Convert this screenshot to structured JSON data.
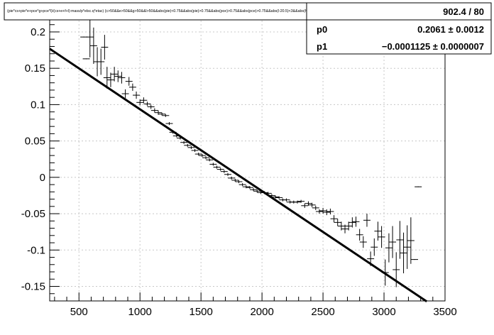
{
  "chart_data": {
    "type": "scatter",
    "title": "(pie*cs+pie*e+pce*g+pce*l)/(cs+e+f+l):mass/p*elsc.q*etac) {c>50&&e>50&&g>50&&l>50&&abs(pie)<0.75&&abs(pie)>0.75&&abs(pce)>0.75&&abs(pce)>0.75&&abs(l-20.5)<3&&abs(h-20.5)<3&&(etac)etac)}",
    "xlabel": "",
    "ylabel": "",
    "xlim": [
      260,
      3500
    ],
    "ylim": [
      -0.17,
      0.24
    ],
    "grid": true,
    "x_ticks": [
      "500",
      "1000",
      "1500",
      "2000",
      "2500",
      "3000",
      "3500"
    ],
    "y_ticks": [
      "0.2",
      "0.15",
      "0.1",
      "0.05",
      "0",
      "-0.05",
      "-0.1",
      "-0.15"
    ],
    "stats": {
      "chi2_ndf": "902.4 / 80",
      "params": [
        {
          "name": "p0",
          "value": "0.2061 ± 0.0012"
        },
        {
          "name": "p1",
          "value": "−0.0001125 ± 0.0000007"
        }
      ]
    },
    "fit": {
      "p0": 0.2061,
      "p1": -0.0001125,
      "x_start": 260,
      "x_end": 3350
    },
    "points": [
      {
        "x": 540,
        "y": 0.193,
        "err": 0.0
      },
      {
        "x": 560,
        "y": 0.163,
        "err": 0.0
      },
      {
        "x": 590,
        "y": 0.193,
        "err": 0.028
      },
      {
        "x": 620,
        "y": 0.181,
        "err": 0.025
      },
      {
        "x": 650,
        "y": 0.159,
        "err": 0.02
      },
      {
        "x": 680,
        "y": 0.159,
        "err": 0.018
      },
      {
        "x": 710,
        "y": 0.179,
        "err": 0.017
      },
      {
        "x": 730,
        "y": 0.137,
        "err": 0.015
      },
      {
        "x": 760,
        "y": 0.134,
        "err": 0.01
      },
      {
        "x": 790,
        "y": 0.142,
        "err": 0.01
      },
      {
        "x": 820,
        "y": 0.139,
        "err": 0.008
      },
      {
        "x": 850,
        "y": 0.137,
        "err": 0.008
      },
      {
        "x": 880,
        "y": 0.115,
        "err": 0.006
      },
      {
        "x": 910,
        "y": 0.132,
        "err": 0.006
      },
      {
        "x": 940,
        "y": 0.124,
        "err": 0.005
      },
      {
        "x": 970,
        "y": 0.113,
        "err": 0.005
      },
      {
        "x": 1000,
        "y": 0.103,
        "err": 0.004
      },
      {
        "x": 1030,
        "y": 0.106,
        "err": 0.004
      },
      {
        "x": 1060,
        "y": 0.101,
        "err": 0.003
      },
      {
        "x": 1090,
        "y": 0.097,
        "err": 0.003
      },
      {
        "x": 1120,
        "y": 0.092,
        "err": 0.003
      },
      {
        "x": 1150,
        "y": 0.089,
        "err": 0.003
      },
      {
        "x": 1180,
        "y": 0.087,
        "err": 0.002
      },
      {
        "x": 1210,
        "y": 0.085,
        "err": 0.002
      },
      {
        "x": 1240,
        "y": 0.074,
        "err": 0.002
      },
      {
        "x": 1270,
        "y": 0.062,
        "err": 0.002
      },
      {
        "x": 1300,
        "y": 0.057,
        "err": 0.002
      },
      {
        "x": 1330,
        "y": 0.054,
        "err": 0.002
      },
      {
        "x": 1360,
        "y": 0.048,
        "err": 0.002
      },
      {
        "x": 1390,
        "y": 0.044,
        "err": 0.002
      },
      {
        "x": 1420,
        "y": 0.041,
        "err": 0.002
      },
      {
        "x": 1450,
        "y": 0.037,
        "err": 0.002
      },
      {
        "x": 1480,
        "y": 0.032,
        "err": 0.002
      },
      {
        "x": 1510,
        "y": 0.03,
        "err": 0.002
      },
      {
        "x": 1540,
        "y": 0.027,
        "err": 0.002
      },
      {
        "x": 1570,
        "y": 0.024,
        "err": 0.002
      },
      {
        "x": 1600,
        "y": 0.018,
        "err": 0.002
      },
      {
        "x": 1630,
        "y": 0.014,
        "err": 0.002
      },
      {
        "x": 1660,
        "y": 0.011,
        "err": 0.002
      },
      {
        "x": 1690,
        "y": 0.008,
        "err": 0.002
      },
      {
        "x": 1720,
        "y": 0.004,
        "err": 0.002
      },
      {
        "x": 1750,
        "y": -0.001,
        "err": 0.002
      },
      {
        "x": 1780,
        "y": -0.004,
        "err": 0.002
      },
      {
        "x": 1810,
        "y": -0.006,
        "err": 0.002
      },
      {
        "x": 1840,
        "y": -0.01,
        "err": 0.002
      },
      {
        "x": 1870,
        "y": -0.013,
        "err": 0.002
      },
      {
        "x": 1900,
        "y": -0.014,
        "err": 0.002
      },
      {
        "x": 1930,
        "y": -0.017,
        "err": 0.002
      },
      {
        "x": 1960,
        "y": -0.019,
        "err": 0.002
      },
      {
        "x": 1990,
        "y": -0.021,
        "err": 0.002
      },
      {
        "x": 2020,
        "y": -0.021,
        "err": 0.002
      },
      {
        "x": 2050,
        "y": -0.022,
        "err": 0.002
      },
      {
        "x": 2080,
        "y": -0.025,
        "err": 0.002
      },
      {
        "x": 2110,
        "y": -0.027,
        "err": 0.002
      },
      {
        "x": 2140,
        "y": -0.028,
        "err": 0.002
      },
      {
        "x": 2170,
        "y": -0.031,
        "err": 0.002
      },
      {
        "x": 2200,
        "y": -0.031,
        "err": 0.002
      },
      {
        "x": 2230,
        "y": -0.034,
        "err": 0.002
      },
      {
        "x": 2260,
        "y": -0.034,
        "err": 0.002
      },
      {
        "x": 2290,
        "y": -0.034,
        "err": 0.002
      },
      {
        "x": 2320,
        "y": -0.033,
        "err": 0.002
      },
      {
        "x": 2350,
        "y": -0.039,
        "err": 0.003
      },
      {
        "x": 2380,
        "y": -0.036,
        "err": 0.003
      },
      {
        "x": 2410,
        "y": -0.038,
        "err": 0.003
      },
      {
        "x": 2440,
        "y": -0.042,
        "err": 0.003
      },
      {
        "x": 2470,
        "y": -0.047,
        "err": 0.003
      },
      {
        "x": 2500,
        "y": -0.046,
        "err": 0.004
      },
      {
        "x": 2530,
        "y": -0.048,
        "err": 0.004
      },
      {
        "x": 2560,
        "y": -0.047,
        "err": 0.004
      },
      {
        "x": 2590,
        "y": -0.057,
        "err": 0.005
      },
      {
        "x": 2620,
        "y": -0.062,
        "err": 0.005
      },
      {
        "x": 2650,
        "y": -0.067,
        "err": 0.006
      },
      {
        "x": 2680,
        "y": -0.071,
        "err": 0.006
      },
      {
        "x": 2710,
        "y": -0.067,
        "err": 0.006
      },
      {
        "x": 2740,
        "y": -0.062,
        "err": 0.007
      },
      {
        "x": 2770,
        "y": -0.061,
        "err": 0.007
      },
      {
        "x": 2800,
        "y": -0.079,
        "err": 0.008
      },
      {
        "x": 2830,
        "y": -0.089,
        "err": 0.008
      },
      {
        "x": 2860,
        "y": -0.059,
        "err": 0.009
      },
      {
        "x": 2890,
        "y": -0.112,
        "err": 0.01
      },
      {
        "x": 2920,
        "y": -0.096,
        "err": 0.012
      },
      {
        "x": 2950,
        "y": -0.074,
        "err": 0.013
      },
      {
        "x": 2980,
        "y": -0.082,
        "err": 0.015
      },
      {
        "x": 3010,
        "y": -0.131,
        "err": 0.018
      },
      {
        "x": 3040,
        "y": -0.097,
        "err": 0.02
      },
      {
        "x": 3070,
        "y": -0.089,
        "err": 0.022
      },
      {
        "x": 3100,
        "y": -0.127,
        "err": 0.024
      },
      {
        "x": 3130,
        "y": -0.086,
        "err": 0.026
      },
      {
        "x": 3160,
        "y": -0.104,
        "err": 0.028
      },
      {
        "x": 3190,
        "y": -0.096,
        "err": 0.03
      },
      {
        "x": 3220,
        "y": -0.087,
        "err": 0.032
      },
      {
        "x": 3250,
        "y": -0.113,
        "err": 0.0
      },
      {
        "x": 3280,
        "y": -0.013,
        "err": 0.0
      }
    ]
  }
}
